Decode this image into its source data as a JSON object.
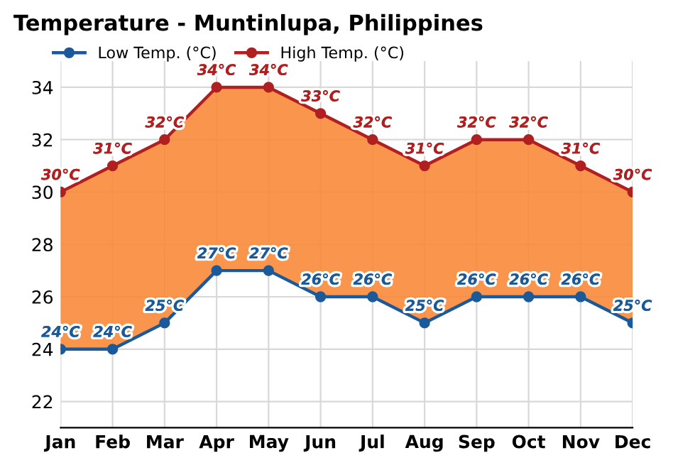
{
  "chart_data": {
    "type": "area",
    "title": "Temperature - Muntinlupa, Philippines",
    "categories": [
      "Jan",
      "Feb",
      "Mar",
      "Apr",
      "May",
      "Jun",
      "Jul",
      "Aug",
      "Sep",
      "Oct",
      "Nov",
      "Dec"
    ],
    "series": [
      {
        "name": "Low Temp. (°C)",
        "color": "#1a5a9a",
        "type": "line",
        "values": [
          24,
          24,
          25,
          27,
          27,
          26,
          26,
          25,
          26,
          26,
          26,
          25
        ],
        "value_labels": [
          "24°C",
          "24°C",
          "25°C",
          "27°C",
          "27°C",
          "26°C",
          "26°C",
          "25°C",
          "26°C",
          "26°C",
          "26°C",
          "25°C"
        ]
      },
      {
        "name": "High Temp. (°C)",
        "color": "#b02020",
        "type": "line",
        "values": [
          30,
          31,
          32,
          34,
          34,
          33,
          32,
          31,
          32,
          32,
          31,
          30
        ],
        "value_labels": [
          "30°C",
          "31°C",
          "32°C",
          "34°C",
          "34°C",
          "33°C",
          "32°C",
          "31°C",
          "32°C",
          "32°C",
          "31°C",
          "30°C"
        ]
      }
    ],
    "ylim": [
      21,
      35
    ],
    "yticks": [
      22,
      24,
      26,
      28,
      30,
      32,
      34
    ],
    "grid": true,
    "legend": "top left",
    "marker": "circle"
  }
}
